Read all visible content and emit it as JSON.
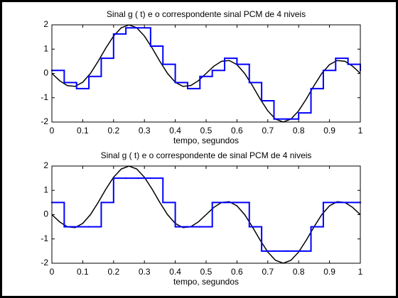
{
  "chart_data": [
    {
      "type": "line",
      "title": "Sinal  g ( t) e o correspondente sinal PCM de 4 niveis",
      "xlabel": "tempo, segundos",
      "xlim": [
        0,
        1
      ],
      "ylim": [
        -2,
        2
      ],
      "xticks": [
        0,
        0.1,
        0.2,
        0.3,
        0.4,
        0.5,
        0.6,
        0.7,
        0.8,
        0.9,
        1
      ],
      "yticks": [
        -2,
        -1,
        0,
        1,
        2
      ],
      "series": [
        {
          "color": "#000000",
          "x": [
            0,
            0.025,
            0.05,
            0.075,
            0.1,
            0.125,
            0.15,
            0.175,
            0.2,
            0.225,
            0.25,
            0.275,
            0.3,
            0.325,
            0.35,
            0.375,
            0.4,
            0.425,
            0.45,
            0.475,
            0.5,
            0.525,
            0.55,
            0.575,
            0.6,
            0.625,
            0.65,
            0.675,
            0.7,
            0.725,
            0.75,
            0.775,
            0.8,
            0.825,
            0.85,
            0.875,
            0.9,
            0.925,
            0.95,
            0.975,
            1
          ],
          "values": [
            0,
            -0.298,
            -0.5,
            -0.534,
            -0.363,
            0,
            0.5,
            1.047,
            1.539,
            1.879,
            2,
            1.879,
            1.539,
            1.047,
            0.5,
            0,
            -0.363,
            -0.534,
            -0.5,
            -0.298,
            0,
            0.298,
            0.5,
            0.534,
            0.363,
            0,
            -0.5,
            -1.047,
            -1.539,
            -1.879,
            -2,
            -1.879,
            -1.539,
            -1.047,
            -0.5,
            0,
            0.363,
            0.534,
            0.5,
            0.298,
            0
          ]
        },
        {
          "color": "#0000ff",
          "step": true,
          "x": [
            0,
            0.04,
            0.08,
            0.12,
            0.16,
            0.2,
            0.24,
            0.28,
            0.32,
            0.36,
            0.4,
            0.44,
            0.48,
            0.52,
            0.56,
            0.6,
            0.64,
            0.68,
            0.72,
            0.76,
            0.8,
            0.84,
            0.88,
            0.92,
            0.96,
            1
          ],
          "values": [
            0.125,
            -0.375,
            -0.625,
            -0.125,
            0.625,
            1.625,
            1.875,
            1.875,
            1.125,
            0.375,
            -0.375,
            -0.625,
            -0.125,
            0.125,
            0.625,
            0.375,
            -0.375,
            -1.125,
            -1.875,
            -1.875,
            -1.625,
            -0.625,
            0.125,
            0.625,
            0.375,
            0.125
          ]
        }
      ]
    },
    {
      "type": "line",
      "title": "Sinal  g ( t) e o correspondente de sinal PCM de 4 niveis",
      "xlabel": "tempo, segundos",
      "xlim": [
        0,
        1
      ],
      "ylim": [
        -2,
        2
      ],
      "xticks": [
        0,
        0.1,
        0.2,
        0.3,
        0.4,
        0.5,
        0.6,
        0.7,
        0.8,
        0.9,
        1
      ],
      "yticks": [
        -2,
        -1,
        0,
        1,
        2
      ],
      "series": [
        {
          "color": "#000000",
          "x": [
            0,
            0.025,
            0.05,
            0.075,
            0.1,
            0.125,
            0.15,
            0.175,
            0.2,
            0.225,
            0.25,
            0.275,
            0.3,
            0.325,
            0.35,
            0.375,
            0.4,
            0.425,
            0.45,
            0.475,
            0.5,
            0.525,
            0.55,
            0.575,
            0.6,
            0.625,
            0.65,
            0.675,
            0.7,
            0.725,
            0.75,
            0.775,
            0.8,
            0.825,
            0.85,
            0.875,
            0.9,
            0.925,
            0.95,
            0.975,
            1
          ],
          "values": [
            0,
            -0.298,
            -0.5,
            -0.534,
            -0.363,
            0,
            0.5,
            1.047,
            1.539,
            1.879,
            2,
            1.879,
            1.539,
            1.047,
            0.5,
            0,
            -0.363,
            -0.534,
            -0.5,
            -0.298,
            0,
            0.298,
            0.5,
            0.534,
            0.363,
            0,
            -0.5,
            -1.047,
            -1.539,
            -1.879,
            -2,
            -1.879,
            -1.539,
            -1.047,
            -0.5,
            0,
            0.363,
            0.534,
            0.5,
            0.298,
            0
          ]
        },
        {
          "color": "#0000ff",
          "step": true,
          "x": [
            0,
            0.04,
            0.08,
            0.12,
            0.16,
            0.2,
            0.24,
            0.28,
            0.32,
            0.36,
            0.4,
            0.44,
            0.48,
            0.52,
            0.56,
            0.6,
            0.64,
            0.68,
            0.72,
            0.76,
            0.8,
            0.84,
            0.88,
            0.92,
            0.96,
            1
          ],
          "values": [
            0.5,
            -0.5,
            -0.5,
            -0.5,
            0.5,
            1.5,
            1.5,
            1.5,
            1.5,
            0.5,
            -0.5,
            -0.5,
            -0.5,
            0.5,
            0.5,
            0.5,
            -0.5,
            -1.5,
            -1.5,
            -1.5,
            -1.5,
            -0.5,
            0.5,
            0.5,
            0.5,
            0.5
          ]
        }
      ]
    }
  ]
}
